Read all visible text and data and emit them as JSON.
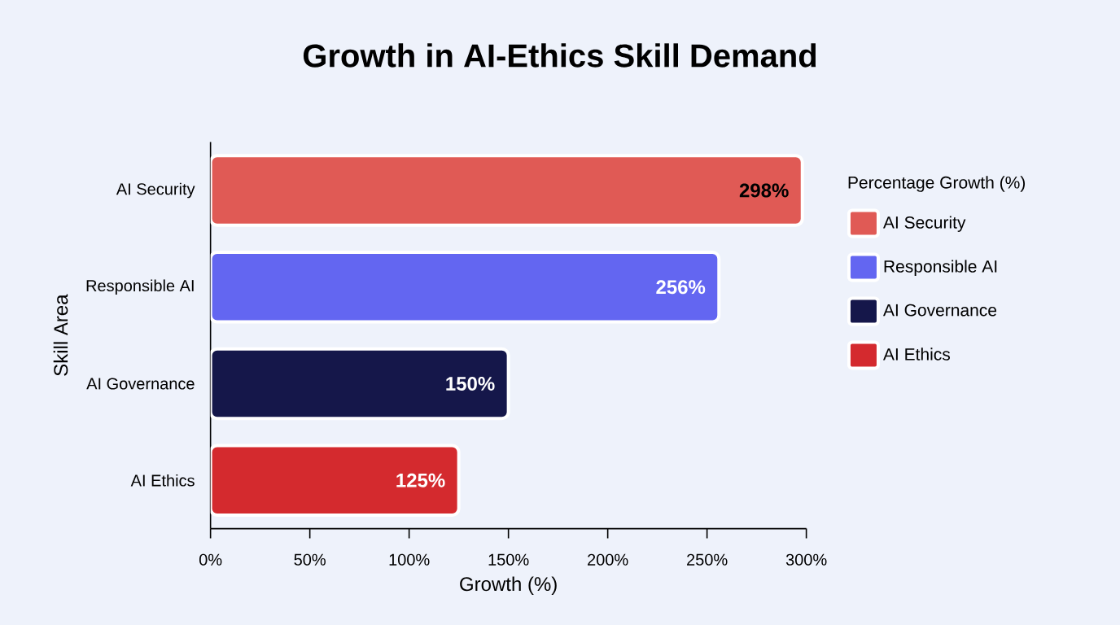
{
  "chart_data": {
    "type": "bar",
    "orientation": "horizontal",
    "title": "Growth in AI-Ethics Skill Demand",
    "xlabel": "Growth (%)",
    "ylabel": "Skill Area",
    "legend_title": "Percentage Growth (%)",
    "categories": [
      "AI Security",
      "Responsible AI",
      "AI Governance",
      "AI Ethics"
    ],
    "series": [
      {
        "name": "AI Security",
        "color": "#e05a55",
        "values": [
          298,
          null,
          null,
          null
        ],
        "value_labels": [
          "298%",
          null,
          null,
          null
        ]
      },
      {
        "name": "Responsible AI",
        "color": "#6366f1",
        "values": [
          null,
          256,
          null,
          null
        ],
        "value_labels": [
          null,
          "256%",
          null,
          null
        ]
      },
      {
        "name": "AI Governance",
        "color": "#15174a",
        "values": [
          null,
          null,
          150,
          null
        ],
        "value_labels": [
          null,
          null,
          "150%",
          null
        ]
      },
      {
        "name": "AI Ethics",
        "color": "#d42a2e",
        "values": [
          null,
          null,
          null,
          125
        ],
        "value_labels": [
          null,
          null,
          null,
          "125%"
        ]
      }
    ],
    "xlim": [
      0,
      300
    ],
    "xticks": [
      {
        "value": 0,
        "label": "0%"
      },
      {
        "value": 50,
        "label": "50%"
      },
      {
        "value": 100,
        "label": "100%"
      },
      {
        "value": 150,
        "label": "150%"
      },
      {
        "value": 200,
        "label": "200%"
      },
      {
        "value": 250,
        "label": "250%"
      },
      {
        "value": 300,
        "label": "300%"
      }
    ],
    "legend": "right"
  }
}
